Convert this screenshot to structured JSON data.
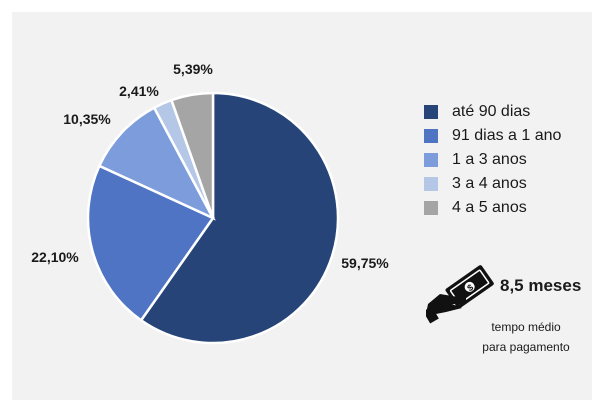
{
  "chart_data": {
    "type": "pie",
    "title": "",
    "categories": [
      "até 90 dias",
      "91 dias a 1 ano",
      "1 a 3 anos",
      "3 a 4 anos",
      "4 a 5 anos"
    ],
    "values": [
      59.75,
      22.1,
      10.35,
      2.41,
      5.39
    ],
    "data_labels": [
      "59,75%",
      "22,10%",
      "10,35%",
      "2,41%",
      "5,39%"
    ],
    "colors": [
      "#264478",
      "#4f74c3",
      "#7d9cdb",
      "#b4c7e7",
      "#a5a5a5"
    ],
    "start_angle_deg": 0,
    "direction": "clockwise",
    "legend_position": "right"
  },
  "kpi": {
    "value": "8,5 meses",
    "caption_line1": "tempo médio",
    "caption_line2": "para pagamento",
    "icon": "money-hand-icon"
  }
}
